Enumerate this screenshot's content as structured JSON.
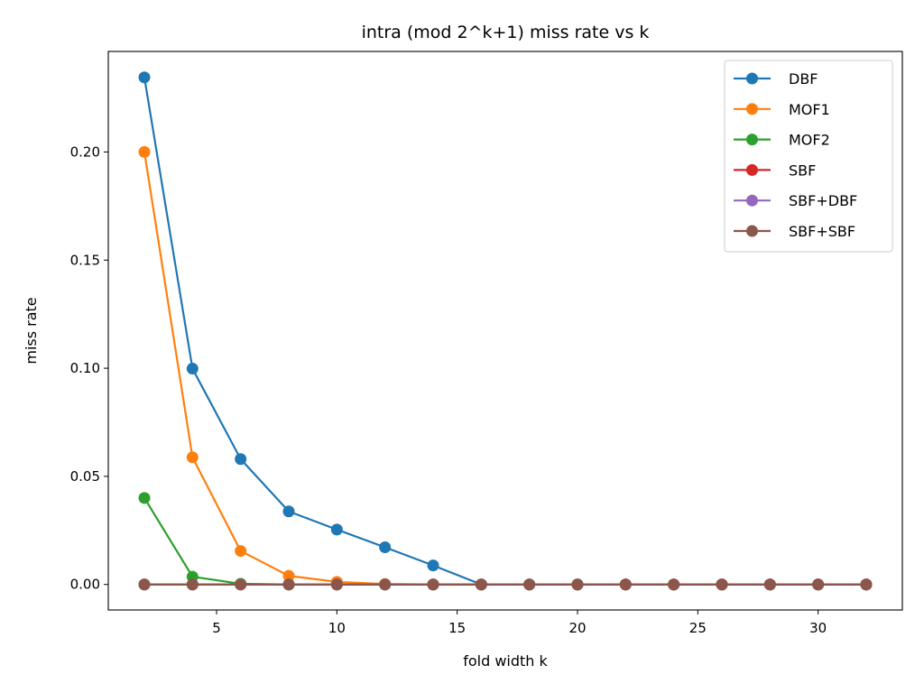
{
  "chart_data": {
    "type": "line",
    "title": "intra (mod 2^k+1) miss rate vs k",
    "xlabel": "fold width k",
    "ylabel": "miss rate",
    "x": [
      2,
      4,
      6,
      8,
      10,
      12,
      14,
      16,
      18,
      20,
      22,
      24,
      26,
      28,
      30,
      32
    ],
    "xlim": [
      0.5,
      33.5
    ],
    "ylim": [
      -0.0118,
      0.2465
    ],
    "xticks": [
      5,
      10,
      15,
      20,
      25,
      30
    ],
    "xtick_labels": [
      "5",
      "10",
      "15",
      "20",
      "25",
      "30"
    ],
    "yticks": [
      0.0,
      0.05,
      0.1,
      0.15,
      0.2
    ],
    "ytick_labels": [
      "0.00",
      "0.05",
      "0.10",
      "0.15",
      "0.20"
    ],
    "grid": false,
    "legend_position": "top-right",
    "series": [
      {
        "name": "DBF",
        "color": "#1f77b4",
        "values": [
          0.2345,
          0.0998,
          0.058,
          0.0338,
          0.0254,
          0.0172,
          0.0088,
          0.0,
          0.0,
          0.0,
          0.0,
          0.0,
          0.0,
          0.0,
          0.0,
          0.0
        ]
      },
      {
        "name": "MOF1",
        "color": "#ff7f0e",
        "values": [
          0.2,
          0.0588,
          0.0155,
          0.004,
          0.0012,
          0.0002,
          0.0,
          0.0,
          0.0,
          0.0,
          0.0,
          0.0,
          0.0,
          0.0,
          0.0,
          0.0
        ]
      },
      {
        "name": "MOF2",
        "color": "#2ca02c",
        "values": [
          0.04,
          0.0036,
          0.0003,
          0.0,
          0.0,
          0.0,
          0.0,
          0.0,
          0.0,
          0.0,
          0.0,
          0.0,
          0.0,
          0.0,
          0.0,
          0.0
        ]
      },
      {
        "name": "SBF",
        "color": "#d62728",
        "values": [
          0.0,
          0.0,
          0.0,
          0.0,
          0.0,
          0.0,
          0.0,
          0.0,
          0.0,
          0.0,
          0.0,
          0.0,
          0.0,
          0.0,
          0.0,
          0.0
        ]
      },
      {
        "name": "SBF+DBF",
        "color": "#9467bd",
        "values": [
          0.0,
          0.0,
          0.0,
          0.0,
          0.0,
          0.0,
          0.0,
          0.0,
          0.0,
          0.0,
          0.0,
          0.0,
          0.0,
          0.0,
          0.0,
          0.0
        ]
      },
      {
        "name": "SBF+SBF",
        "color": "#8c564b",
        "values": [
          0.0,
          0.0,
          0.0,
          0.0,
          0.0,
          0.0,
          0.0,
          0.0,
          0.0,
          0.0,
          0.0,
          0.0,
          0.0,
          0.0,
          0.0,
          0.0
        ]
      }
    ]
  }
}
